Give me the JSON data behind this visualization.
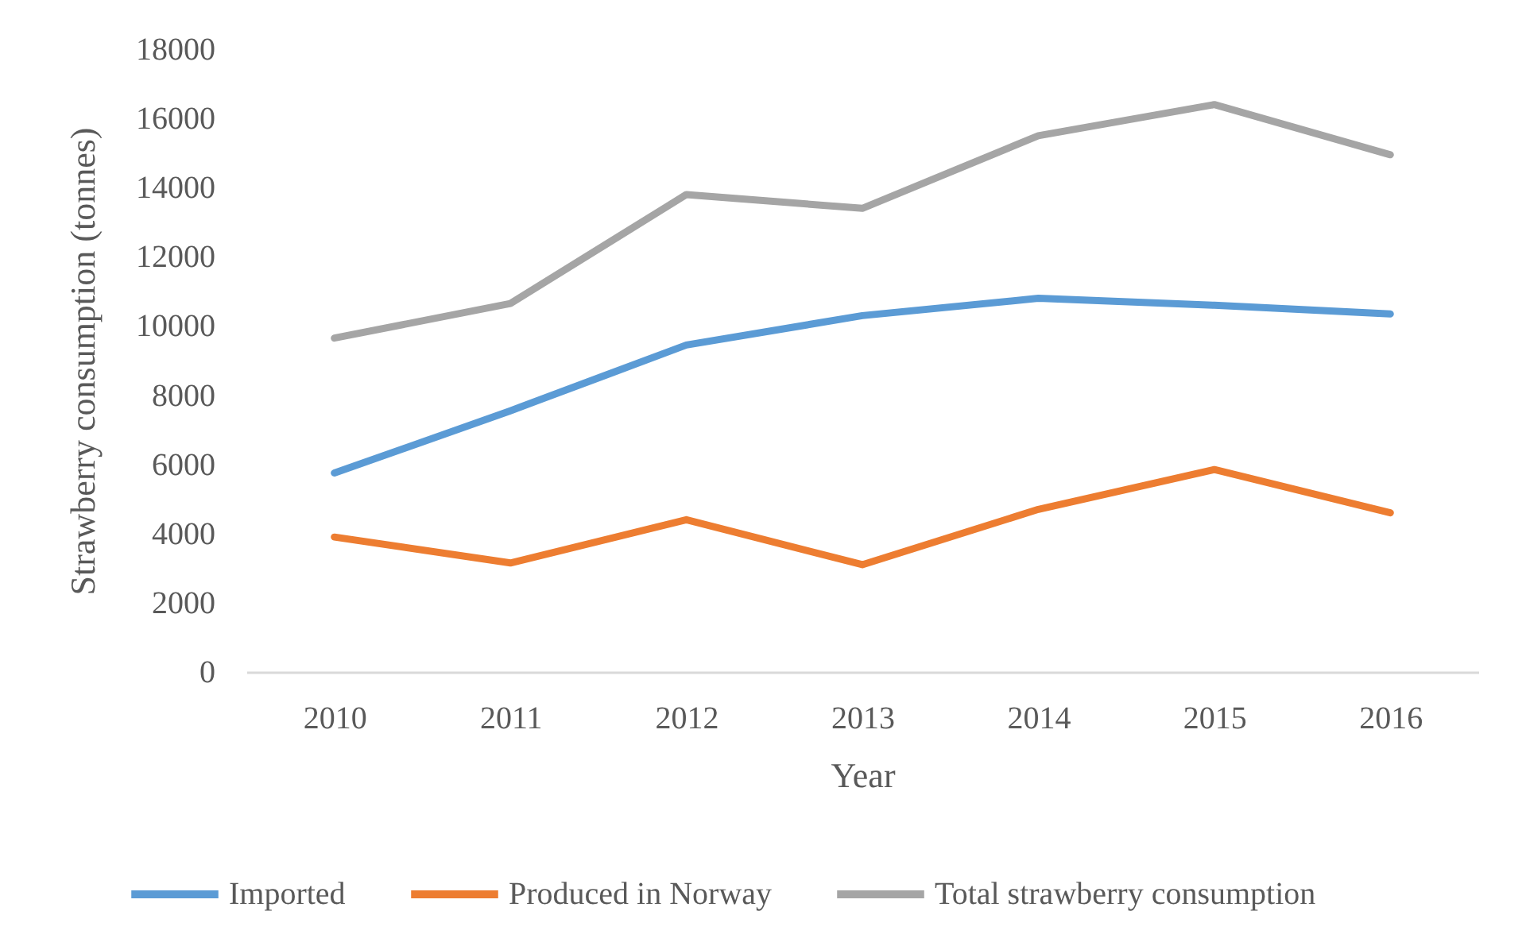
{
  "chart_data": {
    "type": "line",
    "xlabel": "Year",
    "ylabel": "Strawberry consumption (tonnes)",
    "categories": [
      "2010",
      "2011",
      "2012",
      "2013",
      "2014",
      "2015",
      "2016"
    ],
    "series": [
      {
        "name": "Imported",
        "color": "#5b9bd5",
        "values": [
          5750,
          7550,
          9450,
          10300,
          10800,
          10600,
          10350
        ]
      },
      {
        "name": "Produced in Norway",
        "color": "#ed7d31",
        "values": [
          3900,
          3150,
          4400,
          3100,
          4700,
          5850,
          4600
        ]
      },
      {
        "name": "Total strawberry consumption",
        "color": "#a5a5a5",
        "values": [
          9650,
          10650,
          13800,
          13400,
          15500,
          16400,
          14950
        ]
      }
    ],
    "ylim": [
      0,
      18000
    ],
    "yticks": [
      0,
      2000,
      4000,
      6000,
      8000,
      10000,
      12000,
      14000,
      16000,
      18000
    ],
    "legend": "bottom",
    "marker": "none",
    "line_style": "solid"
  }
}
